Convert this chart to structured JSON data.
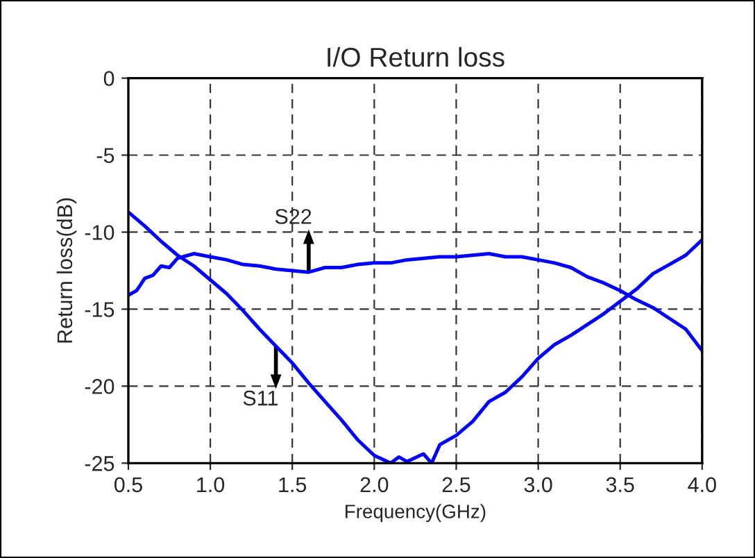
{
  "chart_data": {
    "type": "line",
    "title": "I/O Return loss",
    "xlabel": "Frequency(GHz)",
    "ylabel": "Return loss(dB)",
    "xlim": [
      0.5,
      4.0
    ],
    "xticks": [
      {
        "value": 0.5,
        "label": "0.5"
      },
      {
        "value": 1.0,
        "label": "1.0"
      },
      {
        "value": 1.5,
        "label": "1.5"
      },
      {
        "value": 2.0,
        "label": "2.0"
      },
      {
        "value": 2.5,
        "label": "2.5"
      },
      {
        "value": 3.0,
        "label": "3.0"
      },
      {
        "value": 3.5,
        "label": "3.5"
      },
      {
        "value": 4.0,
        "label": "4.0"
      }
    ],
    "ylim": [
      -25,
      0
    ],
    "yticks": [
      -25,
      -20,
      -15,
      -10,
      -5,
      0
    ],
    "grid": true,
    "marker": "none",
    "line_style": "solid",
    "series": [
      {
        "color": "#0000ff",
        "x": [
          0.5,
          0.6,
          0.7,
          0.8,
          0.9,
          1.0,
          1.1,
          1.2,
          1.3,
          1.4,
          1.5,
          1.6,
          1.7,
          1.8,
          1.9,
          2.0,
          2.1,
          2.15,
          2.2,
          2.3,
          2.35,
          2.4,
          2.5,
          2.6,
          2.7,
          2.8,
          2.9,
          3.0,
          3.1,
          3.2,
          3.3,
          3.4,
          3.5,
          3.6,
          3.7,
          3.8,
          3.9,
          4.0
        ],
        "values": [
          -8.7,
          -9.6,
          -10.6,
          -11.5,
          -12.2,
          -13.1,
          -14.0,
          -15.1,
          -16.3,
          -17.4,
          -18.5,
          -19.8,
          -21.0,
          -22.2,
          -23.5,
          -24.5,
          -25.0,
          -24.6,
          -24.9,
          -24.4,
          -25.0,
          -23.8,
          -23.2,
          -22.3,
          -21.0,
          -20.4,
          -19.4,
          -18.2,
          -17.3,
          -16.7,
          -16.0,
          -15.3,
          -14.5,
          -13.7,
          -12.7,
          -12.1,
          -11.5,
          -10.5
        ]
      },
      {
        "color": "#0000ff",
        "x": [
          0.5,
          0.55,
          0.6,
          0.65,
          0.7,
          0.75,
          0.8,
          0.9,
          1.0,
          1.1,
          1.2,
          1.3,
          1.4,
          1.5,
          1.6,
          1.7,
          1.8,
          1.9,
          2.0,
          2.1,
          2.2,
          2.3,
          2.4,
          2.5,
          2.6,
          2.7,
          2.8,
          2.9,
          3.0,
          3.1,
          3.2,
          3.3,
          3.4,
          3.5,
          3.6,
          3.7,
          3.8,
          3.9,
          4.0
        ],
        "values": [
          -14.1,
          -13.8,
          -13.0,
          -12.8,
          -12.2,
          -12.3,
          -11.7,
          -11.4,
          -11.6,
          -11.8,
          -12.1,
          -12.2,
          -12.4,
          -12.5,
          -12.6,
          -12.3,
          -12.3,
          -12.1,
          -12.0,
          -12.0,
          -11.8,
          -11.7,
          -11.6,
          -11.6,
          -11.5,
          -11.4,
          -11.6,
          -11.6,
          -11.8,
          -12.0,
          -12.3,
          -12.9,
          -13.3,
          -13.8,
          -14.4,
          -14.9,
          -15.6,
          -16.3,
          -17.7
        ]
      }
    ],
    "annotations": [
      {
        "text": "S22",
        "x": 1.6,
        "y": -12.5
      },
      {
        "text": "S11",
        "x": 1.4,
        "y": -17.5
      }
    ]
  }
}
